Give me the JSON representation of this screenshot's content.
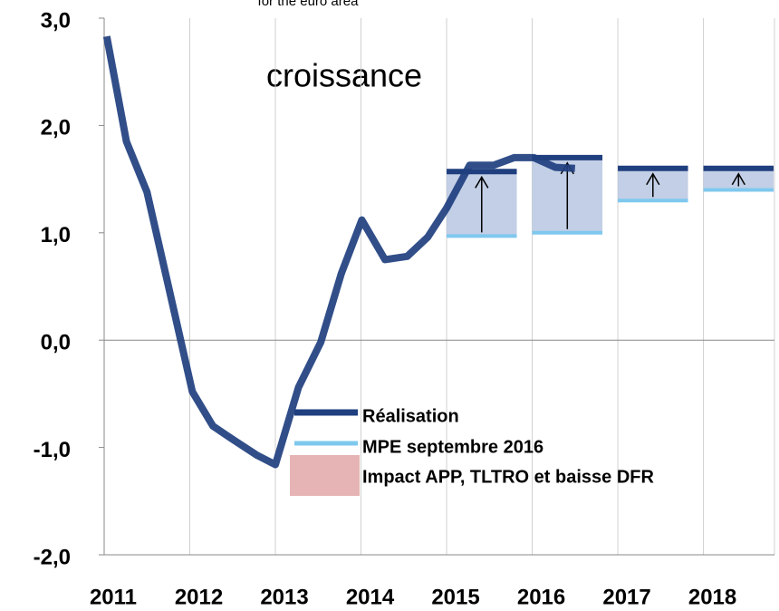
{
  "chart_data": {
    "type": "line",
    "subtitle": "for the euro area",
    "annotation": "croissance",
    "xlim": [
      2011,
      2018.83
    ],
    "xticks": [
      2011,
      2012,
      2013,
      2014,
      2015,
      2016,
      2017,
      2018
    ],
    "ylim": [
      -2,
      3
    ],
    "yticks": [
      {
        "value": 3,
        "label": "3,0"
      },
      {
        "value": 2,
        "label": "2,0"
      },
      {
        "value": 1,
        "label": "1,0"
      },
      {
        "value": 0,
        "label": "0,0"
      },
      {
        "value": -1,
        "label": "-1,0"
      },
      {
        "value": -2,
        "label": "-2,0"
      }
    ],
    "grid": true,
    "quarterly": {
      "x": [
        2011.03,
        2011.26,
        2011.5,
        2011.76,
        2012.03,
        2012.27,
        2012.53,
        2012.78,
        2013.0,
        2013.27,
        2013.53,
        2013.77,
        2014.01,
        2014.28,
        2014.54,
        2014.78,
        2015.0,
        2015.27,
        2015.55,
        2015.79,
        2016.02,
        2016.27,
        2016.5
      ],
      "values": [
        2.83,
        1.85,
        1.38,
        0.47,
        -0.48,
        -0.8,
        -0.94,
        -1.07,
        -1.16,
        -0.44,
        -0.02,
        0.62,
        1.12,
        0.75,
        0.78,
        0.96,
        1.23,
        1.63,
        1.63,
        1.7,
        1.7,
        1.61,
        1.6
      ]
    },
    "annual_x": [
      2015,
      2016,
      2017,
      2018
    ],
    "series": [
      {
        "name": "Réalisation",
        "color": "#1f3f7f",
        "values": [
          1.57,
          1.7,
          1.6,
          1.6
        ]
      },
      {
        "name": "MPE septembre 2016",
        "color": "#7fc8ee",
        "values": [
          0.97,
          1.0,
          1.3,
          1.4
        ]
      },
      {
        "name": "Impact APP, TLTRO et baisse DFR",
        "color": "#e6b4b4"
      }
    ],
    "bar_color": "#b7c7e2"
  }
}
